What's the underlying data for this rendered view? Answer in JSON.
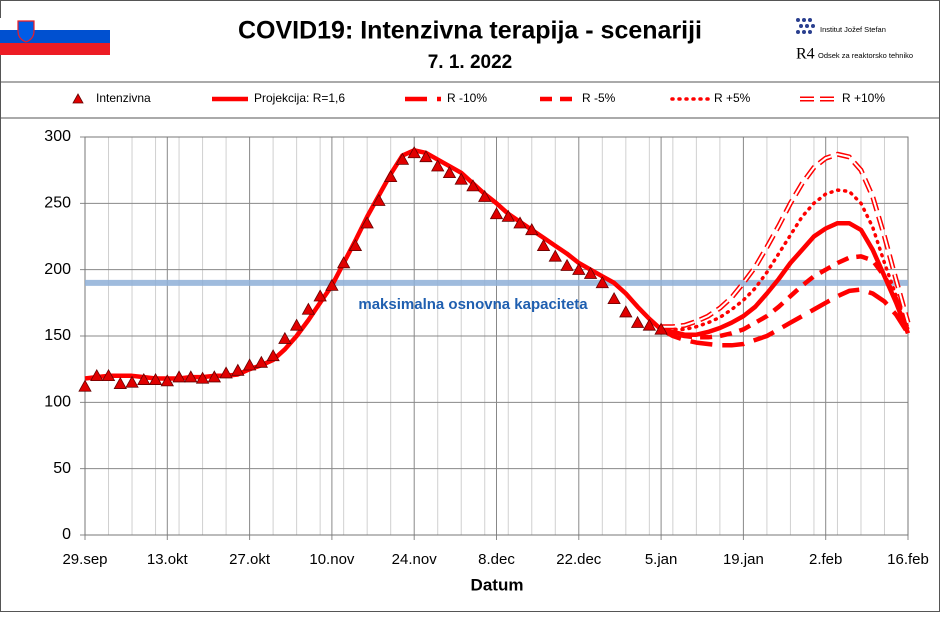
{
  "header_logo": {
    "institute": "Institut Jožef Stefan",
    "r4": "R4",
    "department": "Odsek za reaktorsko tehniko"
  },
  "chart_data": {
    "type": "line",
    "title": "COVID19: Intenzivna terapija - scenariji",
    "subtitle": "7. 1. 2022",
    "x_label": "Datum",
    "categories": [
      "29.sep",
      null,
      null,
      null,
      null,
      null,
      null,
      "13.okt",
      null,
      null,
      null,
      null,
      null,
      null,
      "27.okt",
      null,
      null,
      null,
      null,
      null,
      null,
      "10.nov",
      null,
      null,
      null,
      null,
      null,
      null,
      "24.nov",
      null,
      null,
      null,
      null,
      null,
      null,
      "8.dec",
      null,
      null,
      null,
      null,
      null,
      null,
      "22.dec",
      null,
      null,
      null,
      null,
      null,
      null,
      "5.jan",
      null,
      null,
      null,
      null,
      null,
      null,
      "19.jan",
      null,
      null,
      null,
      null,
      null,
      null,
      "2.feb",
      null,
      null,
      null,
      null,
      null,
      null,
      "16.feb"
    ],
    "ylim": [
      0,
      300
    ],
    "yticks": [
      0,
      50,
      100,
      150,
      200,
      250,
      300
    ],
    "grid": true,
    "reference_line": {
      "value": 190,
      "label": "maksimalna  osnovna  kapaciteta",
      "color": "#8fb0d8"
    },
    "series": [
      {
        "name": "Intenzivna",
        "color": "#e00000",
        "style": "markers",
        "values": [
          112,
          120,
          120,
          114,
          115,
          117,
          117,
          116,
          119,
          119,
          118,
          119,
          122,
          124,
          128,
          130,
          135,
          148,
          158,
          170,
          180,
          188,
          205,
          218,
          235,
          252,
          270,
          283,
          288,
          285,
          278,
          273,
          268,
          263,
          255,
          242,
          240,
          235,
          230,
          218,
          210,
          203,
          200,
          197,
          190,
          178,
          168,
          160,
          158,
          155,
          null,
          null,
          null,
          null,
          null,
          null,
          null,
          null,
          null,
          null,
          null,
          null,
          null,
          null,
          null,
          null,
          null,
          null,
          null,
          null,
          null
        ]
      },
      {
        "name": "Projekcija: R=1,6",
        "color": "#ff0000",
        "style": "solid",
        "values": [
          118,
          119,
          120,
          120,
          120,
          119,
          118,
          118,
          118,
          119,
          119,
          120,
          120,
          121,
          125,
          128,
          132,
          140,
          150,
          162,
          175,
          188,
          205,
          222,
          240,
          256,
          272,
          286,
          290,
          288,
          283,
          278,
          273,
          265,
          257,
          250,
          242,
          236,
          230,
          224,
          218,
          212,
          205,
          200,
          195,
          190,
          182,
          172,
          163,
          155,
          153,
          151,
          151,
          153,
          156,
          160,
          165,
          172,
          182,
          193,
          205,
          215,
          225,
          231,
          235,
          235,
          230,
          215,
          195,
          175,
          152
        ]
      },
      {
        "name": "R -10%",
        "color": "#ff0000",
        "style": "dash-long",
        "values": [
          null,
          null,
          null,
          null,
          null,
          null,
          null,
          null,
          null,
          null,
          null,
          null,
          null,
          null,
          null,
          null,
          null,
          null,
          null,
          null,
          null,
          null,
          null,
          null,
          null,
          null,
          null,
          null,
          null,
          null,
          null,
          null,
          null,
          null,
          null,
          null,
          null,
          null,
          null,
          null,
          null,
          null,
          null,
          null,
          null,
          null,
          null,
          null,
          null,
          155,
          150,
          147,
          145,
          144,
          143,
          143,
          144,
          147,
          150,
          155,
          160,
          165,
          170,
          175,
          180,
          184,
          185,
          182,
          176,
          166,
          152
        ]
      },
      {
        "name": "R -5%",
        "color": "#ff0000",
        "style": "dash",
        "values": [
          null,
          null,
          null,
          null,
          null,
          null,
          null,
          null,
          null,
          null,
          null,
          null,
          null,
          null,
          null,
          null,
          null,
          null,
          null,
          null,
          null,
          null,
          null,
          null,
          null,
          null,
          null,
          null,
          null,
          null,
          null,
          null,
          null,
          null,
          null,
          null,
          null,
          null,
          null,
          null,
          null,
          null,
          null,
          null,
          null,
          null,
          null,
          null,
          null,
          155,
          152,
          150,
          149,
          149,
          150,
          152,
          155,
          160,
          165,
          172,
          180,
          188,
          195,
          200,
          205,
          209,
          210,
          207,
          195,
          178,
          155
        ]
      },
      {
        "name": "R +5%",
        "color": "#ff0000",
        "style": "dotted",
        "values": [
          null,
          null,
          null,
          null,
          null,
          null,
          null,
          null,
          null,
          null,
          null,
          null,
          null,
          null,
          null,
          null,
          null,
          null,
          null,
          null,
          null,
          null,
          null,
          null,
          null,
          null,
          null,
          null,
          null,
          null,
          null,
          null,
          null,
          null,
          null,
          null,
          null,
          null,
          null,
          null,
          null,
          null,
          null,
          null,
          null,
          null,
          null,
          null,
          null,
          156,
          155,
          155,
          157,
          160,
          164,
          170,
          177,
          186,
          198,
          212,
          226,
          240,
          250,
          257,
          260,
          259,
          250,
          232,
          205,
          180,
          155
        ]
      },
      {
        "name": "R +10%",
        "color": "#ff0000",
        "style": "double",
        "values": [
          null,
          null,
          null,
          null,
          null,
          null,
          null,
          null,
          null,
          null,
          null,
          null,
          null,
          null,
          null,
          null,
          null,
          null,
          null,
          null,
          null,
          null,
          null,
          null,
          null,
          null,
          null,
          null,
          null,
          null,
          null,
          null,
          null,
          null,
          null,
          null,
          null,
          null,
          null,
          null,
          null,
          null,
          null,
          null,
          null,
          null,
          null,
          null,
          null,
          157,
          157,
          158,
          161,
          165,
          171,
          179,
          190,
          202,
          217,
          233,
          250,
          265,
          277,
          284,
          287,
          285,
          275,
          255,
          225,
          192,
          160
        ]
      }
    ]
  }
}
